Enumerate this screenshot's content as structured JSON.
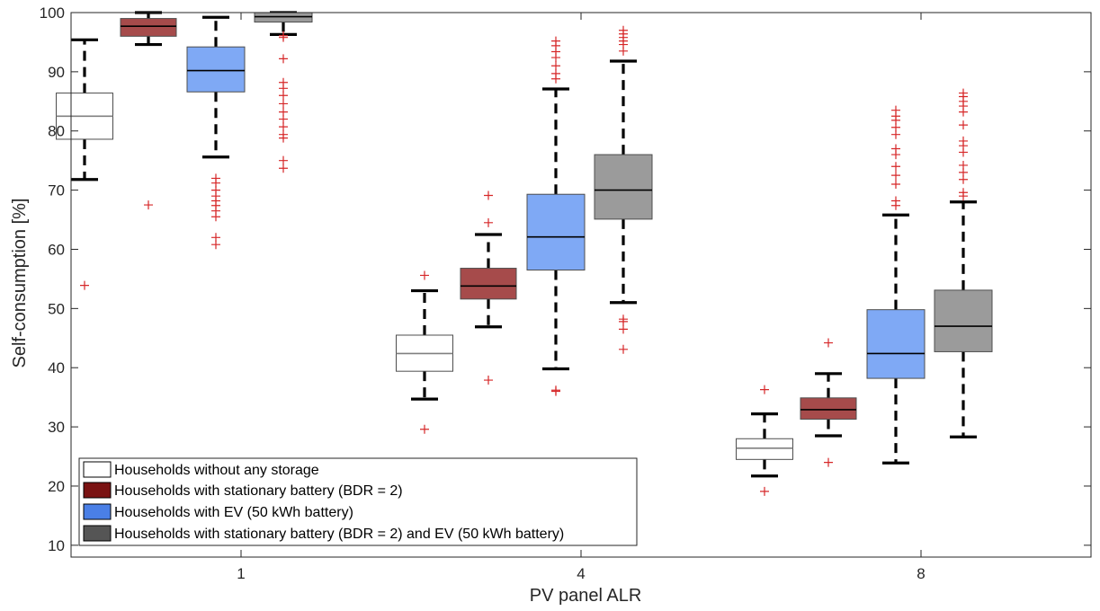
{
  "chart_data": {
    "type": "box",
    "xlabel": "PV panel ALR",
    "ylabel": "Self-consumption [%]",
    "ylim": [
      8,
      100
    ],
    "yticks": [
      10,
      20,
      30,
      40,
      50,
      60,
      70,
      80,
      90,
      100
    ],
    "categories": [
      "1",
      "4",
      "8"
    ],
    "legend_position": "bottom-left",
    "grid": false,
    "series": [
      {
        "name": "Households without any storage",
        "fill": "#ffffff",
        "legend_fill": "#ffffff",
        "median_color": "#808080",
        "boxes": [
          {
            "category": "1",
            "whisker_low": 71.8,
            "q1": 78.6,
            "median": 82.5,
            "q3": 86.4,
            "whisker_high": 95.4,
            "outliers": [
              53.9
            ]
          },
          {
            "category": "4",
            "whisker_low": 34.7,
            "q1": 39.4,
            "median": 42.4,
            "q3": 45.5,
            "whisker_high": 53.0,
            "outliers": [
              55.6,
              29.6
            ]
          },
          {
            "category": "8",
            "whisker_low": 21.7,
            "q1": 24.5,
            "median": 26.4,
            "q3": 28.0,
            "whisker_high": 32.2,
            "outliers": [
              36.3,
              19.1
            ]
          }
        ]
      },
      {
        "name": "Households with stationary battery (BDR = 2)",
        "fill": "#a64b4b",
        "legend_fill": "#7a1212",
        "median_color": "#000000",
        "boxes": [
          {
            "category": "1",
            "whisker_low": 94.6,
            "q1": 96.0,
            "median": 97.7,
            "q3": 99.0,
            "whisker_high": 100.0,
            "outliers": [
              67.5
            ]
          },
          {
            "category": "4",
            "whisker_low": 46.9,
            "q1": 51.6,
            "median": 53.8,
            "q3": 56.8,
            "whisker_high": 62.5,
            "outliers": [
              69.1,
              64.5,
              37.9
            ]
          },
          {
            "category": "8",
            "whisker_low": 28.5,
            "q1": 31.3,
            "median": 32.9,
            "q3": 34.9,
            "whisker_high": 39.0,
            "outliers": [
              44.2,
              24.0
            ]
          }
        ]
      },
      {
        "name": "Households with EV (50 kWh battery)",
        "fill": "#7fa9f5",
        "legend_fill": "#4a7fe6",
        "median_color": "#000000",
        "boxes": [
          {
            "category": "1",
            "whisker_low": 75.6,
            "q1": 86.6,
            "median": 90.2,
            "q3": 94.2,
            "whisker_high": 99.2,
            "outliers": [
              72.0,
              71.2,
              70.0,
              69.0,
              68.2,
              67.4,
              66.5,
              65.5,
              62.0,
              60.8
            ]
          },
          {
            "category": "4",
            "whisker_low": 39.8,
            "q1": 56.5,
            "median": 62.1,
            "q3": 69.3,
            "whisker_high": 87.1,
            "outliers": [
              95.2,
              94.4,
              93.4,
              92.4,
              91.0,
              89.7,
              88.8,
              36.2,
              36.0
            ]
          },
          {
            "category": "8",
            "whisker_low": 23.9,
            "q1": 38.2,
            "median": 42.4,
            "q3": 49.8,
            "whisker_high": 65.8,
            "outliers": [
              83.5,
              82.5,
              81.8,
              80.6,
              79.4,
              77.0,
              76.0,
              74.0,
              72.5,
              71.0,
              68.2,
              67.4
            ]
          }
        ]
      },
      {
        "name": "Households with stationary battery (BDR = 2) and EV (50 kWh battery)",
        "fill": "#9b9b9b",
        "legend_fill": "#555555",
        "median_color": "#000000",
        "boxes": [
          {
            "category": "1",
            "whisker_low": 96.3,
            "q1": 98.4,
            "median": 99.3,
            "q3": 100.0,
            "whisker_high": 100.0,
            "outliers": [
              96.1,
              95.8,
              92.2,
              88.2,
              87.2,
              86.0,
              84.6,
              83.2,
              82.0,
              80.7,
              79.4,
              78.8,
              75.0,
              73.7
            ]
          },
          {
            "category": "4",
            "whisker_low": 51.0,
            "q1": 65.1,
            "median": 70.0,
            "q3": 76.0,
            "whisker_high": 91.8,
            "outliers": [
              97.0,
              96.4,
              95.8,
              95.2,
              94.6,
              93.5,
              48.2,
              47.8,
              46.5,
              43.1
            ]
          },
          {
            "category": "8",
            "whisker_low": 28.3,
            "q1": 42.7,
            "median": 47.0,
            "q3": 53.1,
            "whisker_high": 68.0,
            "outliers": [
              86.4,
              85.8,
              85.0,
              84.2,
              83.2,
              81.0,
              78.3,
              77.5,
              76.4,
              74.2,
              73.0,
              71.8,
              69.6,
              69.0
            ]
          }
        ]
      }
    ]
  },
  "colors": {
    "outlier": "#d62728",
    "whisker": "#000000",
    "box_edge": "#4d4d4d",
    "axis": "#262626"
  }
}
